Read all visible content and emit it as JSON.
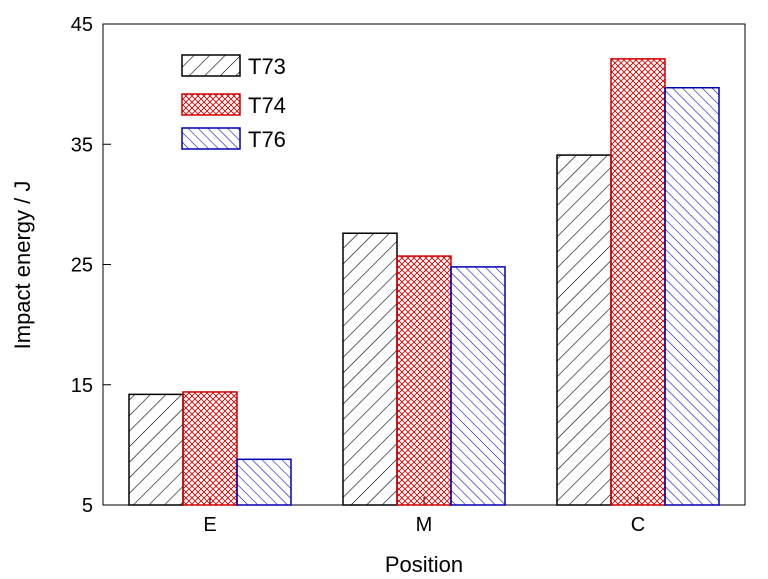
{
  "chart_data": {
    "type": "bar",
    "title": "",
    "xlabel": "Position",
    "ylabel": "Impact energy / J",
    "categories": [
      "E",
      "M",
      "C"
    ],
    "ylim": [
      5,
      45
    ],
    "yticks": [
      5,
      15,
      25,
      35,
      45
    ],
    "grid": false,
    "legend_position": "top-left",
    "series": [
      {
        "name": "T73",
        "values": [
          14.2,
          27.6,
          34.1
        ],
        "color": "#000000",
        "hatch": "forward-diagonal"
      },
      {
        "name": "T74",
        "values": [
          14.4,
          25.7,
          42.1
        ],
        "color": "#d00000",
        "hatch": "crosshatch"
      },
      {
        "name": "T76",
        "values": [
          8.8,
          24.8,
          39.7
        ],
        "color": "#0000b0",
        "hatch": "back-diagonal"
      }
    ]
  }
}
